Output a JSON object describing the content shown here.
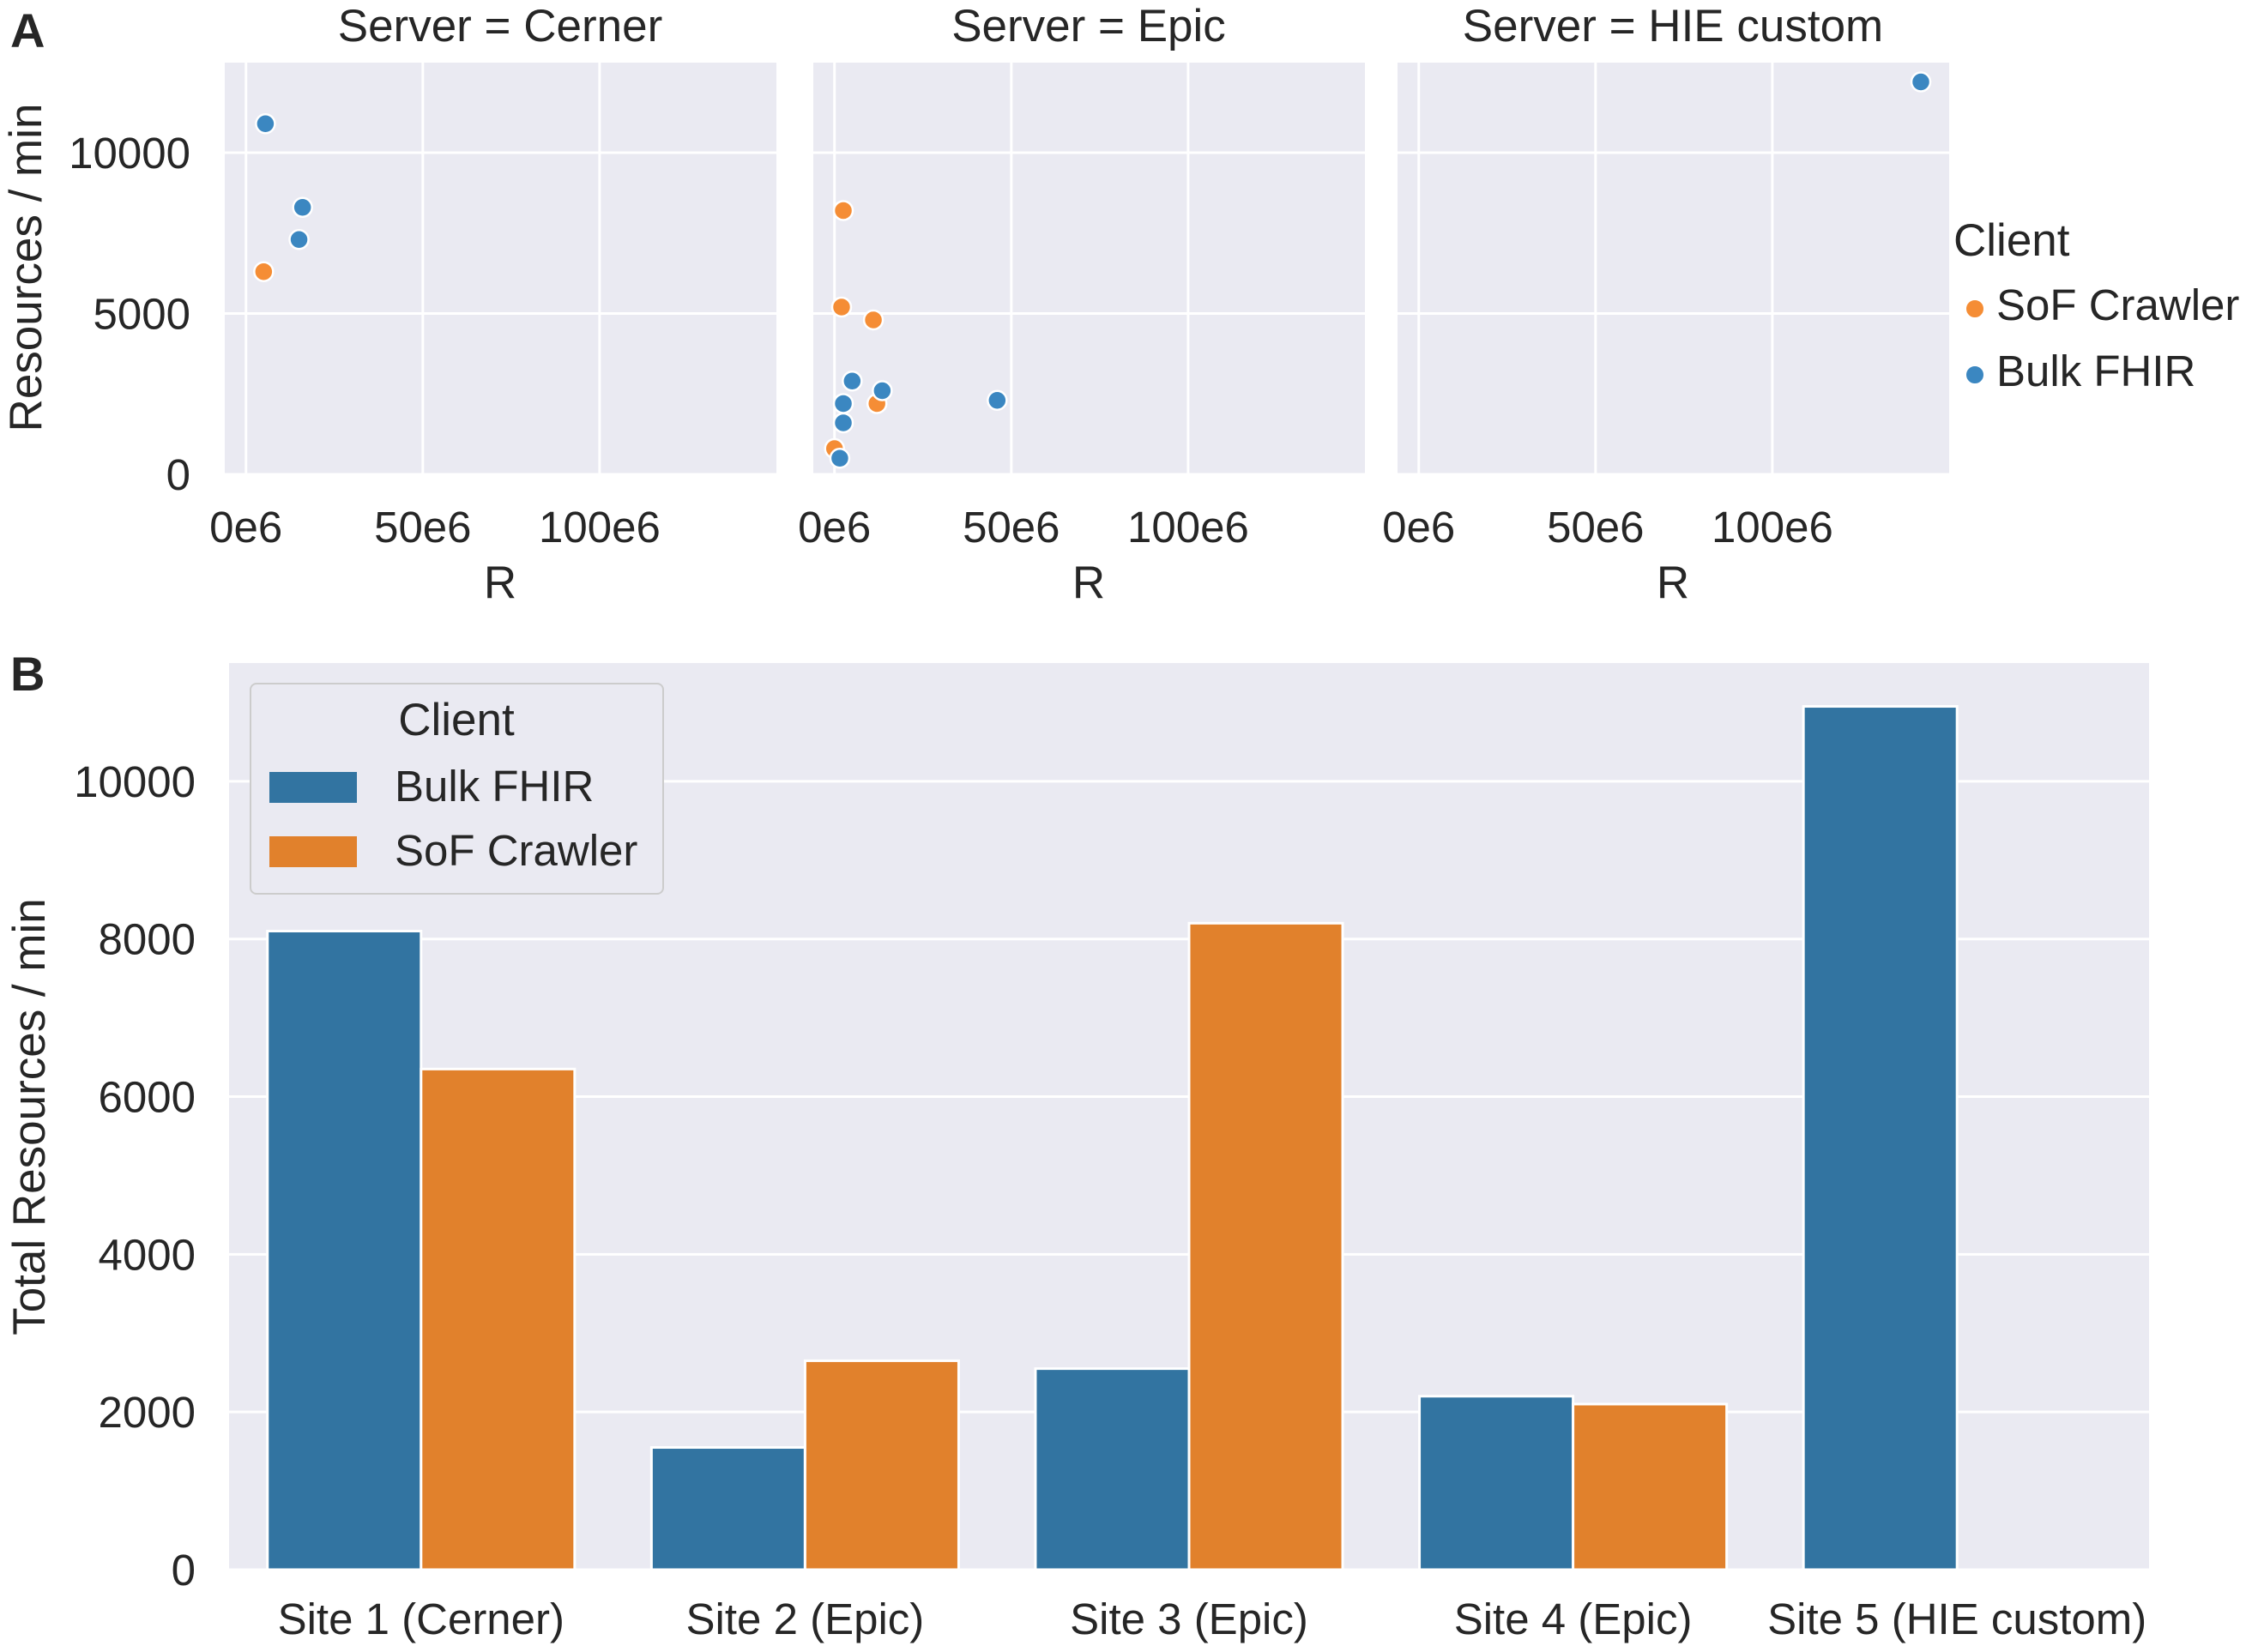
{
  "panel_a": {
    "letter": "A",
    "ylabel": "Resources / min",
    "xlabel": "R",
    "legend": {
      "title": "Client",
      "items": [
        {
          "label": "SoF Crawler",
          "color": "#f58d35"
        },
        {
          "label": "Bulk FHIR",
          "color": "#3b87c1"
        }
      ]
    }
  },
  "panel_b": {
    "letter": "B",
    "legend": {
      "title": "Client",
      "items": [
        {
          "label": "Bulk FHIR",
          "color": "#3274a1"
        },
        {
          "label": "SoF Crawler",
          "color": "#e1812c"
        }
      ]
    }
  },
  "chart_data": [
    {
      "type": "scatter",
      "title": "Server = Cerner",
      "xlabel": "R",
      "ylabel": "Resources / min",
      "xlim": [
        -6000000,
        150000000
      ],
      "ylim": [
        0,
        12800
      ],
      "xticks": [
        0,
        50000000,
        100000000
      ],
      "xtick_labels": [
        "0e6",
        "50e6",
        "100e6"
      ],
      "yticks": [
        0,
        5000,
        10000
      ],
      "ytick_labels": [
        "0",
        "5000",
        "10000"
      ],
      "grid": true,
      "series": [
        {
          "name": "SoF Crawler",
          "color": "#f58d35",
          "points": [
            [
              5000000,
              6300
            ]
          ]
        },
        {
          "name": "Bulk FHIR",
          "color": "#3b87c1",
          "points": [
            [
              5500000,
              10900
            ],
            [
              16000000,
              8300
            ],
            [
              15000000,
              7300
            ]
          ]
        }
      ]
    },
    {
      "type": "scatter",
      "title": "Server = Epic",
      "xlabel": "R",
      "ylabel": "",
      "xlim": [
        -6000000,
        150000000
      ],
      "ylim": [
        0,
        12800
      ],
      "xticks": [
        0,
        50000000,
        100000000
      ],
      "xtick_labels": [
        "0e6",
        "50e6",
        "100e6"
      ],
      "grid": true,
      "series": [
        {
          "name": "SoF Crawler",
          "color": "#f58d35",
          "points": [
            [
              2500000,
              8200
            ],
            [
              2000000,
              5200
            ],
            [
              11000000,
              4800
            ],
            [
              12000000,
              2200
            ],
            [
              0,
              800
            ]
          ]
        },
        {
          "name": "Bulk FHIR",
          "color": "#3b87c1",
          "points": [
            [
              5000000,
              2900
            ],
            [
              2500000,
              2200
            ],
            [
              2500000,
              1600
            ],
            [
              13500000,
              2600
            ],
            [
              46000000,
              2300
            ],
            [
              1500000,
              500
            ]
          ]
        }
      ]
    },
    {
      "type": "scatter",
      "title": "Server = HIE custom",
      "xlabel": "R",
      "ylabel": "",
      "xlim": [
        -6000000,
        150000000
      ],
      "ylim": [
        0,
        12800
      ],
      "xticks": [
        0,
        50000000,
        100000000
      ],
      "xtick_labels": [
        "0e6",
        "50e6",
        "100e6"
      ],
      "grid": true,
      "series": [
        {
          "name": "SoF Crawler",
          "color": "#f58d35",
          "points": []
        },
        {
          "name": "Bulk FHIR",
          "color": "#3b87c1",
          "points": [
            [
              142000000,
              12200
            ]
          ]
        }
      ]
    },
    {
      "type": "bar",
      "categories": [
        "Site 1 (Cerner)",
        "Site 2 (Epic)",
        "Site 3 (Epic)",
        "Site 4 (Epic)",
        "Site 5 (HIE custom)"
      ],
      "series": [
        {
          "name": "Bulk FHIR",
          "color": "#3274a1",
          "values": [
            8100,
            1550,
            2550,
            2200,
            10950
          ]
        },
        {
          "name": "SoF Crawler",
          "color": "#e1812c",
          "values": [
            6350,
            2650,
            8200,
            2100,
            null
          ]
        }
      ],
      "xlabel": "",
      "ylabel": "Total Resources / min",
      "ylim": [
        0,
        11500
      ],
      "yticks": [
        0,
        2000,
        4000,
        6000,
        8000,
        10000
      ],
      "ytick_labels": [
        "0",
        "2000",
        "4000",
        "6000",
        "8000",
        "10000"
      ],
      "grid": true,
      "legend_position": "top-left"
    }
  ]
}
